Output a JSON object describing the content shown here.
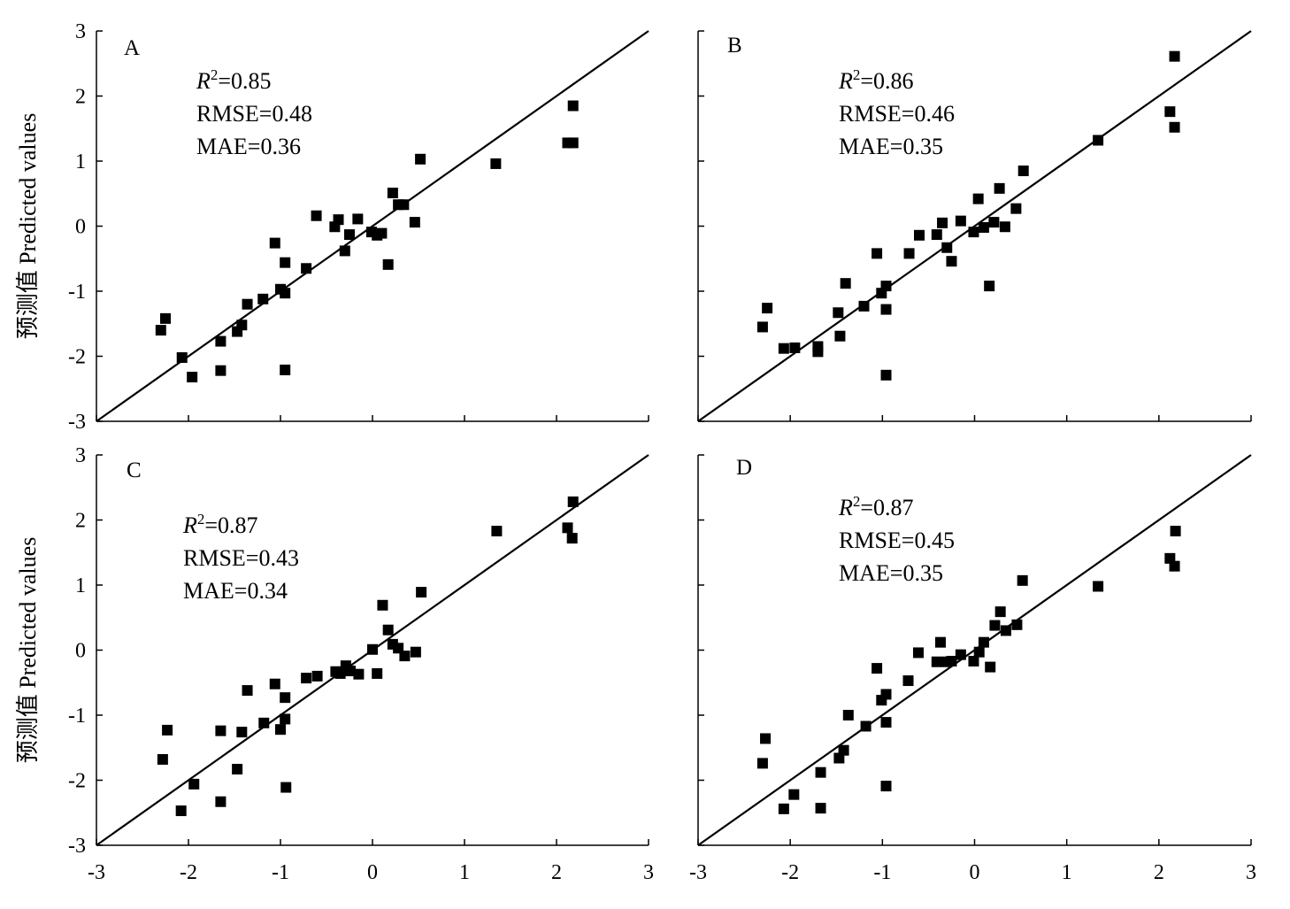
{
  "chart_data": [
    {
      "type": "scatter",
      "panel": "A",
      "ylabel": "预测值 Predicted values",
      "xlim": [
        -3,
        3
      ],
      "ylim": [
        -3,
        3
      ],
      "xticks": [
        "-3",
        "-2",
        "-1",
        "0",
        "1",
        "2",
        "3"
      ],
      "yticks": [
        "-3",
        "-2",
        "-1",
        "0",
        "1",
        "2",
        "3"
      ],
      "stats": {
        "r2_label": "R",
        "r2_sup": "2",
        "r2_value": "=0.85",
        "rmse": "RMSE=0.48",
        "mae": "MAE=0.36"
      },
      "reference_line": [
        [
          -3,
          -3
        ],
        [
          3,
          3
        ]
      ],
      "points": [
        [
          -2.3,
          -1.6
        ],
        [
          -2.25,
          -1.42
        ],
        [
          -2.07,
          -2.02
        ],
        [
          -1.96,
          -2.32
        ],
        [
          -1.65,
          -1.77
        ],
        [
          -1.65,
          -2.22
        ],
        [
          -1.47,
          -1.62
        ],
        [
          -1.42,
          -1.52
        ],
        [
          -1.36,
          -1.2
        ],
        [
          -1.19,
          -1.12
        ],
        [
          -1.06,
          -0.26
        ],
        [
          -1.0,
          -0.97
        ],
        [
          -0.95,
          -0.56
        ],
        [
          -0.95,
          -1.03
        ],
        [
          -0.95,
          -2.21
        ],
        [
          -0.72,
          -0.65
        ],
        [
          -0.61,
          0.16
        ],
        [
          -0.41,
          -0.01
        ],
        [
          -0.37,
          0.1
        ],
        [
          -0.3,
          -0.38
        ],
        [
          -0.25,
          -0.13
        ],
        [
          -0.16,
          0.11
        ],
        [
          -0.01,
          -0.09
        ],
        [
          0.05,
          -0.14
        ],
        [
          0.1,
          -0.11
        ],
        [
          0.17,
          -0.59
        ],
        [
          0.22,
          0.51
        ],
        [
          0.28,
          0.33
        ],
        [
          0.34,
          0.33
        ],
        [
          0.46,
          0.06
        ],
        [
          0.52,
          1.03
        ],
        [
          1.34,
          0.96
        ],
        [
          2.12,
          1.28
        ],
        [
          2.18,
          1.28
        ],
        [
          2.18,
          1.85
        ]
      ]
    },
    {
      "type": "scatter",
      "panel": "B",
      "ylabel": "",
      "xlim": [
        -3,
        3
      ],
      "ylim": [
        -3,
        3
      ],
      "xticks": [
        "-3",
        "-2",
        "-1",
        "0",
        "1",
        "2",
        "3"
      ],
      "yticks": [],
      "stats": {
        "r2_label": "R",
        "r2_sup": "2",
        "r2_value": "=0.86",
        "rmse": "RMSE=0.46",
        "mae": "MAE=0.35"
      },
      "reference_line": [
        [
          -3,
          -3
        ],
        [
          3,
          3
        ]
      ],
      "points": [
        [
          -2.3,
          -1.55
        ],
        [
          -2.25,
          -1.26
        ],
        [
          -2.07,
          -1.88
        ],
        [
          -1.95,
          -1.87
        ],
        [
          -1.7,
          -1.85
        ],
        [
          -1.7,
          -1.93
        ],
        [
          -1.46,
          -1.69
        ],
        [
          -1.4,
          -0.88
        ],
        [
          -1.48,
          -1.33
        ],
        [
          -1.2,
          -1.23
        ],
        [
          -1.06,
          -0.42
        ],
        [
          -1.01,
          -1.03
        ],
        [
          -0.96,
          -0.92
        ],
        [
          -0.96,
          -1.28
        ],
        [
          -0.96,
          -2.29
        ],
        [
          -0.71,
          -0.42
        ],
        [
          -0.6,
          -0.14
        ],
        [
          -0.41,
          -0.13
        ],
        [
          -0.35,
          0.05
        ],
        [
          -0.3,
          -0.33
        ],
        [
          -0.25,
          -0.54
        ],
        [
          -0.15,
          0.08
        ],
        [
          -0.01,
          -0.09
        ],
        [
          0.04,
          0.42
        ],
        [
          0.1,
          -0.02
        ],
        [
          0.16,
          -0.92
        ],
        [
          0.21,
          0.06
        ],
        [
          0.27,
          0.58
        ],
        [
          0.33,
          -0.01
        ],
        [
          0.45,
          0.27
        ],
        [
          0.53,
          0.85
        ],
        [
          1.34,
          1.32
        ],
        [
          2.12,
          1.76
        ],
        [
          2.17,
          1.52
        ],
        [
          2.17,
          2.61
        ]
      ]
    },
    {
      "type": "scatter",
      "panel": "C",
      "ylabel": "预测值 Predicted values",
      "xlim": [
        -3,
        3
      ],
      "ylim": [
        -3,
        3
      ],
      "xticks": [
        "-3",
        "-2",
        "-1",
        "0",
        "1",
        "2",
        "3"
      ],
      "yticks": [
        "-3",
        "-2",
        "-1",
        "0",
        "1",
        "2",
        "3"
      ],
      "stats": {
        "r2_label": "R",
        "r2_sup": "2",
        "r2_value": "=0.87",
        "rmse": "RMSE=0.43",
        "mae": "MAE=0.34"
      },
      "reference_line": [
        [
          -3,
          -3
        ],
        [
          3,
          3
        ]
      ],
      "points": [
        [
          -2.28,
          -1.68
        ],
        [
          -2.23,
          -1.23
        ],
        [
          -2.08,
          -2.47
        ],
        [
          -1.94,
          -2.06
        ],
        [
          -1.65,
          -1.24
        ],
        [
          -1.65,
          -2.33
        ],
        [
          -1.47,
          -1.83
        ],
        [
          -1.42,
          -1.26
        ],
        [
          -1.36,
          -0.62
        ],
        [
          -1.18,
          -1.12
        ],
        [
          -1.06,
          -0.52
        ],
        [
          -1.0,
          -1.22
        ],
        [
          -0.95,
          -0.73
        ],
        [
          -0.95,
          -1.06
        ],
        [
          -0.94,
          -2.11
        ],
        [
          -0.72,
          -0.43
        ],
        [
          -0.6,
          -0.4
        ],
        [
          -0.4,
          -0.33
        ],
        [
          -0.35,
          -0.36
        ],
        [
          -0.29,
          -0.24
        ],
        [
          -0.24,
          -0.32
        ],
        [
          -0.15,
          -0.37
        ],
        [
          0.0,
          0.01
        ],
        [
          0.05,
          -0.36
        ],
        [
          0.11,
          0.69
        ],
        [
          0.17,
          0.31
        ],
        [
          0.22,
          0.09
        ],
        [
          0.28,
          0.03
        ],
        [
          0.35,
          -0.09
        ],
        [
          0.47,
          -0.03
        ],
        [
          0.53,
          0.89
        ],
        [
          1.35,
          1.83
        ],
        [
          2.12,
          1.88
        ],
        [
          2.17,
          1.72
        ],
        [
          2.18,
          2.28
        ]
      ]
    },
    {
      "type": "scatter",
      "panel": "D",
      "ylabel": "",
      "xlim": [
        -3,
        3
      ],
      "ylim": [
        -3,
        3
      ],
      "xticks": [
        "-3",
        "-2",
        "-1",
        "0",
        "1",
        "2",
        "3"
      ],
      "yticks": [],
      "stats": {
        "r2_label": "R",
        "r2_sup": "2",
        "r2_value": "=0.87",
        "rmse": "RMSE=0.45",
        "mae": "MAE=0.35"
      },
      "reference_line": [
        [
          -3,
          -3
        ],
        [
          3,
          3
        ]
      ],
      "points": [
        [
          -2.3,
          -1.74
        ],
        [
          -2.27,
          -1.36
        ],
        [
          -2.07,
          -2.44
        ],
        [
          -1.96,
          -2.22
        ],
        [
          -1.67,
          -1.88
        ],
        [
          -1.67,
          -2.43
        ],
        [
          -1.47,
          -1.66
        ],
        [
          -1.42,
          -1.54
        ],
        [
          -1.37,
          -1.0
        ],
        [
          -1.18,
          -1.17
        ],
        [
          -1.06,
          -0.28
        ],
        [
          -1.01,
          -0.77
        ],
        [
          -0.96,
          -0.68
        ],
        [
          -0.96,
          -1.11
        ],
        [
          -0.96,
          -2.09
        ],
        [
          -0.72,
          -0.47
        ],
        [
          -0.61,
          -0.04
        ],
        [
          -0.41,
          -0.18
        ],
        [
          -0.37,
          0.12
        ],
        [
          -0.3,
          -0.18
        ],
        [
          -0.25,
          -0.17
        ],
        [
          -0.15,
          -0.07
        ],
        [
          -0.01,
          -0.17
        ],
        [
          0.05,
          -0.03
        ],
        [
          0.1,
          0.12
        ],
        [
          0.17,
          -0.26
        ],
        [
          0.22,
          0.38
        ],
        [
          0.28,
          0.59
        ],
        [
          0.34,
          0.3
        ],
        [
          0.46,
          0.39
        ],
        [
          0.52,
          1.07
        ],
        [
          1.34,
          0.98
        ],
        [
          2.12,
          1.41
        ],
        [
          2.17,
          1.29
        ],
        [
          2.18,
          1.83
        ]
      ]
    }
  ]
}
